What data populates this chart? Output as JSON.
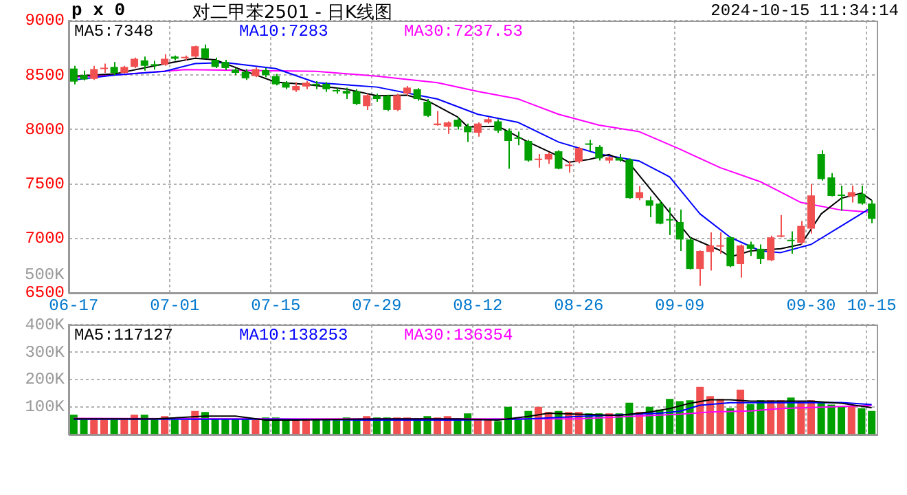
{
  "chart_data": [
    {
      "type": "candlestick",
      "title": "对二甲苯2501 - 日K线图",
      "annotations": [
        "p x 0",
        "2024-10-15 11:34:14",
        "500K"
      ],
      "categories": [
        "06-17",
        null,
        null,
        null,
        null,
        null,
        null,
        null,
        null,
        null,
        "07-01",
        null,
        null,
        null,
        null,
        null,
        null,
        null,
        null,
        null,
        "07-15",
        null,
        null,
        null,
        null,
        null,
        null,
        null,
        null,
        null,
        "07-29",
        null,
        null,
        null,
        null,
        null,
        null,
        null,
        null,
        null,
        "08-12",
        null,
        null,
        null,
        null,
        null,
        null,
        null,
        null,
        null,
        "08-26",
        null,
        null,
        null,
        null,
        null,
        null,
        null,
        null,
        null,
        "09-09",
        null,
        null,
        null,
        null,
        null,
        null,
        null,
        null,
        null,
        null,
        null,
        null,
        "09-30",
        null,
        null,
        null,
        null,
        null,
        "10-15"
      ],
      "ohlc": [
        [
          8560,
          8585,
          8415,
          8440
        ],
        [
          8500,
          8540,
          8450,
          8460
        ],
        [
          8465,
          8585,
          8455,
          8555
        ],
        [
          8555,
          8605,
          8520,
          8565
        ],
        [
          8575,
          8620,
          8500,
          8520
        ],
        [
          8520,
          8585,
          8510,
          8575
        ],
        [
          8575,
          8660,
          8565,
          8650
        ],
        [
          8635,
          8670,
          8540,
          8585
        ],
        [
          8600,
          8630,
          8550,
          8585
        ],
        [
          8595,
          8690,
          8585,
          8650
        ],
        [
          8670,
          8680,
          8635,
          8650
        ],
        [
          8655,
          8680,
          8635,
          8660
        ],
        [
          8670,
          8770,
          8660,
          8765
        ],
        [
          8745,
          8780,
          8650,
          8655
        ],
        [
          8640,
          8660,
          8565,
          8575
        ],
        [
          8620,
          8640,
          8545,
          8565
        ],
        [
          8550,
          8565,
          8500,
          8520
        ],
        [
          8530,
          8555,
          8455,
          8470
        ],
        [
          8490,
          8570,
          8480,
          8555
        ],
        [
          8545,
          8565,
          8480,
          8500
        ],
        [
          8490,
          8510,
          8405,
          8415
        ],
        [
          8430,
          8445,
          8370,
          8385
        ],
        [
          8360,
          8435,
          8345,
          8400
        ],
        [
          8395,
          8445,
          8370,
          8430
        ],
        [
          8420,
          8445,
          8370,
          8405
        ],
        [
          8420,
          8435,
          8345,
          8370
        ],
        [
          8355,
          8385,
          8330,
          8350
        ],
        [
          8355,
          8385,
          8280,
          8330
        ],
        [
          8350,
          8370,
          8225,
          8235
        ],
        [
          8215,
          8330,
          8180,
          8315
        ],
        [
          8310,
          8330,
          8255,
          8280
        ],
        [
          8310,
          8320,
          8170,
          8180
        ],
        [
          8180,
          8330,
          8170,
          8315
        ],
        [
          8330,
          8400,
          8310,
          8385
        ],
        [
          8370,
          8380,
          8265,
          8280
        ],
        [
          8255,
          8280,
          8115,
          8125
        ],
        [
          8040,
          8170,
          8035,
          8055
        ],
        [
          8025,
          8075,
          7960,
          8065
        ],
        [
          8090,
          8110,
          8000,
          8025
        ],
        [
          8030,
          8055,
          7885,
          7975
        ],
        [
          7970,
          8065,
          7935,
          8055
        ],
        [
          8065,
          8115,
          8055,
          8095
        ],
        [
          8075,
          8095,
          7970,
          7990
        ],
        [
          7990,
          8010,
          7640,
          7895
        ],
        [
          7920,
          7980,
          7855,
          7915
        ],
        [
          7895,
          7905,
          7705,
          7715
        ],
        [
          7720,
          7775,
          7650,
          7730
        ],
        [
          7725,
          7790,
          7685,
          7775
        ],
        [
          7800,
          7810,
          7635,
          7640
        ],
        [
          7665,
          7710,
          7605,
          7675
        ],
        [
          7705,
          7840,
          7690,
          7830
        ],
        [
          7865,
          7905,
          7800,
          7860
        ],
        [
          7840,
          7855,
          7715,
          7735
        ],
        [
          7715,
          7755,
          7690,
          7745
        ],
        [
          7740,
          7775,
          7705,
          7715
        ],
        [
          7725,
          7735,
          7365,
          7370
        ],
        [
          7370,
          7480,
          7350,
          7425
        ],
        [
          7350,
          7385,
          7195,
          7300
        ],
        [
          7320,
          7350,
          7130,
          7135
        ],
        [
          7170,
          7285,
          7030,
          7165
        ],
        [
          7150,
          7265,
          6885,
          6990
        ],
        [
          6990,
          7010,
          6715,
          6720
        ],
        [
          6720,
          6890,
          6565,
          6885
        ],
        [
          6875,
          7055,
          6705,
          6935
        ],
        [
          6925,
          7055,
          6860,
          6935
        ],
        [
          7010,
          7020,
          6735,
          6745
        ],
        [
          6765,
          6945,
          6640,
          6935
        ],
        [
          6945,
          6970,
          6840,
          6905
        ],
        [
          6905,
          6945,
          6765,
          6810
        ],
        [
          6800,
          7025,
          6790,
          7010
        ],
        [
          7015,
          7215,
          7010,
          7025
        ],
        [
          6985,
          7065,
          6860,
          6975
        ],
        [
          6960,
          7160,
          6945,
          7115
        ],
        [
          7090,
          7500,
          7045,
          7395
        ],
        [
          7775,
          7810,
          7530,
          7545
        ],
        [
          7560,
          7600,
          7385,
          7390
        ],
        [
          7400,
          7485,
          7255,
          7390
        ],
        [
          7385,
          7485,
          7330,
          7425
        ],
        [
          7410,
          7485,
          7310,
          7320
        ],
        [
          7320,
          7350,
          7140,
          7180
        ]
      ],
      "colors": [
        "#00a000",
        "#00a000",
        "#f05050",
        "#f05050",
        "#00a000",
        "#f05050",
        "#f05050",
        "#00a000",
        "#00a000",
        "#f05050",
        "#00a000",
        "#f05050",
        "#f05050",
        "#00a000",
        "#00a000",
        "#00a000",
        "#00a000",
        "#00a000",
        "#f05050",
        "#00a000",
        "#00a000",
        "#00a000",
        "#f05050",
        "#f05050",
        "#00a000",
        "#00a000",
        "#00a000",
        "#00a000",
        "#00a000",
        "#f05050",
        "#00a000",
        "#00a000",
        "#f05050",
        "#f05050",
        "#00a000",
        "#00a000",
        "#f05050",
        "#f05050",
        "#00a000",
        "#00a000",
        "#f05050",
        "#f05050",
        "#00a000",
        "#00a000",
        "#00a000",
        "#00a000",
        "#f05050",
        "#f05050",
        "#00a000",
        "#f05050",
        "#f05050",
        "#00a000",
        "#00a000",
        "#f05050",
        "#00a000",
        "#00a000",
        "#f05050",
        "#00a000",
        "#00a000",
        "#00a000",
        "#00a000",
        "#00a000",
        "#f05050",
        "#f05050",
        "#f05050",
        "#00a000",
        "#f05050",
        "#00a000",
        "#00a000",
        "#f05050",
        "#f05050",
        "#00a000",
        "#f05050",
        "#f05050",
        "#00a000",
        "#00a000",
        "#00a000",
        "#f05050",
        "#00a000",
        "#00a000"
      ],
      "series": [
        {
          "name": "MA5:7348",
          "type": "line",
          "color": "#000000",
          "values": [
            8490,
            null,
            null,
            null,
            8510,
            null,
            null,
            null,
            8585,
            null,
            null,
            null,
            8655,
            null,
            8640,
            null,
            null,
            8535,
            null,
            null,
            8435,
            null,
            null,
            8415,
            null,
            null,
            null,
            8370,
            null,
            null,
            8310,
            null,
            null,
            8315,
            null,
            8265,
            null,
            null,
            8115,
            8025,
            null,
            null,
            8030,
            null,
            null,
            7885,
            null,
            null,
            7755,
            7700,
            null,
            7725,
            null,
            7770,
            null,
            7690,
            null,
            null,
            7350,
            null,
            null,
            7010,
            null,
            null,
            6890,
            6830,
            null,
            6885,
            null,
            null,
            6905,
            null,
            6945,
            null,
            7225,
            null,
            7370,
            null,
            7415,
            7350
          ]
        },
        {
          "name": "MA10:7283",
          "type": "line",
          "color": "#0000ff",
          "values": [
            8455,
            null,
            null,
            null,
            8500,
            null,
            null,
            null,
            null,
            8535,
            null,
            null,
            8605,
            null,
            null,
            8615,
            null,
            null,
            null,
            null,
            8560,
            null,
            null,
            null,
            8430,
            null,
            null,
            null,
            null,
            null,
            8390,
            null,
            null,
            null,
            null,
            null,
            8280,
            null,
            null,
            null,
            8140,
            null,
            null,
            null,
            8065,
            null,
            null,
            null,
            7885,
            null,
            null,
            null,
            7775,
            null,
            null,
            null,
            7710,
            null,
            null,
            7565,
            null,
            null,
            7225,
            null,
            null,
            7010,
            null,
            null,
            6885,
            null,
            6870,
            null,
            null,
            6945,
            null,
            null,
            7115,
            null,
            null,
            7285
          ]
        },
        {
          "name": "MA30:7237.53",
          "type": "line",
          "color": "#ff00ff",
          "values": [
            8480,
            null,
            null,
            null,
            8500,
            null,
            null,
            null,
            null,
            null,
            null,
            8550,
            null,
            null,
            null,
            null,
            null,
            null,
            null,
            null,
            null,
            null,
            null,
            null,
            8535,
            null,
            null,
            null,
            null,
            null,
            8490,
            null,
            null,
            null,
            null,
            null,
            8430,
            null,
            null,
            null,
            8350,
            null,
            null,
            null,
            8280,
            null,
            null,
            null,
            8140,
            null,
            null,
            null,
            8040,
            null,
            null,
            null,
            7980,
            null,
            null,
            null,
            7820,
            null,
            null,
            null,
            7650,
            null,
            null,
            null,
            7520,
            null,
            null,
            null,
            7330,
            null,
            null,
            null,
            7260,
            null,
            null,
            7240
          ]
        }
      ],
      "ylim": [
        6500,
        9000
      ],
      "yticks": [
        6500,
        7000,
        7500,
        8000,
        8500,
        9000
      ],
      "grid": true,
      "legend": "top",
      "marker": "none"
    },
    {
      "type": "bar",
      "categories": [
        null,
        null,
        null,
        null,
        null,
        null,
        null,
        null,
        null,
        null,
        null,
        null,
        null,
        null,
        null,
        null,
        null,
        null,
        null,
        null,
        null,
        null,
        null,
        null,
        null,
        null,
        null,
        null,
        null,
        null,
        null,
        null,
        null,
        null,
        null,
        null,
        null,
        null,
        null,
        null,
        null,
        null,
        null,
        null,
        null,
        null,
        null,
        null,
        null,
        null,
        null,
        null,
        null,
        null,
        null,
        null,
        null,
        null,
        null,
        null,
        null,
        null,
        null,
        null,
        null,
        null,
        null,
        null,
        null,
        null,
        null,
        null,
        null,
        null,
        null,
        null,
        null,
        null,
        null,
        null
      ],
      "values": [
        71000,
        53000,
        53000,
        53000,
        53000,
        53000,
        71000,
        71000,
        53000,
        66000,
        53000,
        53000,
        85000,
        81000,
        56000,
        56000,
        56000,
        56000,
        53000,
        61000,
        61000,
        53000,
        53000,
        53000,
        53000,
        53000,
        53000,
        61000,
        53000,
        66000,
        61000,
        61000,
        61000,
        61000,
        53000,
        66000,
        61000,
        66000,
        53000,
        76000,
        53000,
        53000,
        48000,
        100000,
        53000,
        85000,
        100000,
        81000,
        85000,
        81000,
        81000,
        76000,
        76000,
        76000,
        76000,
        115000,
        81000,
        100000,
        90000,
        129000,
        121000,
        124000,
        173000,
        139000,
        129000,
        95000,
        163000,
        110000,
        124000,
        124000,
        124000,
        134000,
        121000,
        124000,
        115000,
        108000,
        100000,
        105000,
        95000,
        85000
      ],
      "colors": [
        "#00a000",
        "#00a000",
        "#f05050",
        "#f05050",
        "#00a000",
        "#f05050",
        "#f05050",
        "#00a000",
        "#00a000",
        "#f05050",
        "#00a000",
        "#f05050",
        "#f05050",
        "#00a000",
        "#00a000",
        "#00a000",
        "#00a000",
        "#00a000",
        "#f05050",
        "#00a000",
        "#00a000",
        "#00a000",
        "#f05050",
        "#f05050",
        "#00a000",
        "#00a000",
        "#00a000",
        "#00a000",
        "#00a000",
        "#f05050",
        "#00a000",
        "#00a000",
        "#f05050",
        "#f05050",
        "#00a000",
        "#00a000",
        "#f05050",
        "#f05050",
        "#00a000",
        "#00a000",
        "#f05050",
        "#f05050",
        "#00a000",
        "#00a000",
        "#00a000",
        "#00a000",
        "#f05050",
        "#f05050",
        "#00a000",
        "#f05050",
        "#f05050",
        "#00a000",
        "#00a000",
        "#f05050",
        "#00a000",
        "#00a000",
        "#f05050",
        "#00a000",
        "#00a000",
        "#00a000",
        "#00a000",
        "#00a000",
        "#f05050",
        "#f05050",
        "#f05050",
        "#00a000",
        "#f05050",
        "#00a000",
        "#00a000",
        "#f05050",
        "#f05050",
        "#00a000",
        "#f05050",
        "#f05050",
        "#00a000",
        "#00a000",
        "#00a000",
        "#f05050",
        "#00a000",
        "#00a000"
      ],
      "series": [
        {
          "name": "MA5:117127",
          "type": "line",
          "color": "#000000",
          "values": [
            56000,
            null,
            null,
            null,
            null,
            null,
            null,
            null,
            56000,
            null,
            null,
            null,
            null,
            66000,
            null,
            null,
            66000,
            null,
            null,
            52000,
            null,
            null,
            52000,
            null,
            null,
            null,
            null,
            null,
            null,
            null,
            56000,
            null,
            null,
            null,
            null,
            null,
            null,
            null,
            56000,
            null,
            null,
            null,
            52000,
            null,
            null,
            65000,
            null,
            77000,
            null,
            null,
            73000,
            null,
            null,
            null,
            69000,
            null,
            null,
            81000,
            null,
            94000,
            null,
            113000,
            null,
            126000,
            null,
            126000,
            null,
            121000,
            null,
            null,
            121000,
            null,
            null,
            121000,
            null,
            null,
            113000,
            null,
            null,
            97000
          ]
        },
        {
          "name": "MA10:138253",
          "type": "line",
          "color": "#0000ff",
          "values": [
            55000,
            null,
            null,
            null,
            null,
            null,
            null,
            null,
            null,
            null,
            null,
            null,
            null,
            null,
            null,
            null,
            null,
            null,
            null,
            null,
            55000,
            null,
            null,
            null,
            null,
            null,
            null,
            null,
            52000,
            null,
            null,
            null,
            null,
            null,
            null,
            null,
            null,
            null,
            52000,
            null,
            null,
            null,
            null,
            null,
            null,
            56000,
            null,
            null,
            null,
            null,
            65000,
            null,
            null,
            null,
            null,
            null,
            null,
            null,
            77000,
            null,
            84000,
            null,
            106000,
            null,
            null,
            115000,
            null,
            null,
            null,
            null,
            null,
            null,
            null,
            null,
            null,
            null,
            116000,
            null,
            null,
            108000
          ]
        },
        {
          "name": "MA30:136354",
          "type": "line",
          "color": "#ff00ff",
          "values": [
            58000,
            null,
            null,
            null,
            null,
            null,
            null,
            null,
            null,
            null,
            null,
            null,
            null,
            null,
            null,
            null,
            null,
            null,
            null,
            null,
            56000,
            null,
            null,
            null,
            null,
            null,
            null,
            null,
            null,
            null,
            null,
            null,
            null,
            null,
            null,
            null,
            null,
            null,
            null,
            null,
            56000,
            null,
            null,
            null,
            null,
            null,
            null,
            null,
            null,
            null,
            56000,
            null,
            null,
            null,
            null,
            65000,
            null,
            null,
            null,
            null,
            73000,
            null,
            null,
            81000,
            null,
            null,
            null,
            85000,
            null,
            null,
            94000,
            null,
            null,
            null,
            null,
            100000,
            null,
            null,
            null,
            105000
          ]
        }
      ],
      "ylim": [
        0,
        400000
      ],
      "yticks": [
        {
          "value": 100000,
          "label": "100K"
        },
        {
          "value": 200000,
          "label": "200K"
        },
        {
          "value": 300000,
          "label": "300K"
        },
        {
          "value": 400000,
          "label": "400K"
        }
      ],
      "grid": true,
      "legend": "top",
      "marker": "none",
      "tick_labels": "y"
    }
  ]
}
